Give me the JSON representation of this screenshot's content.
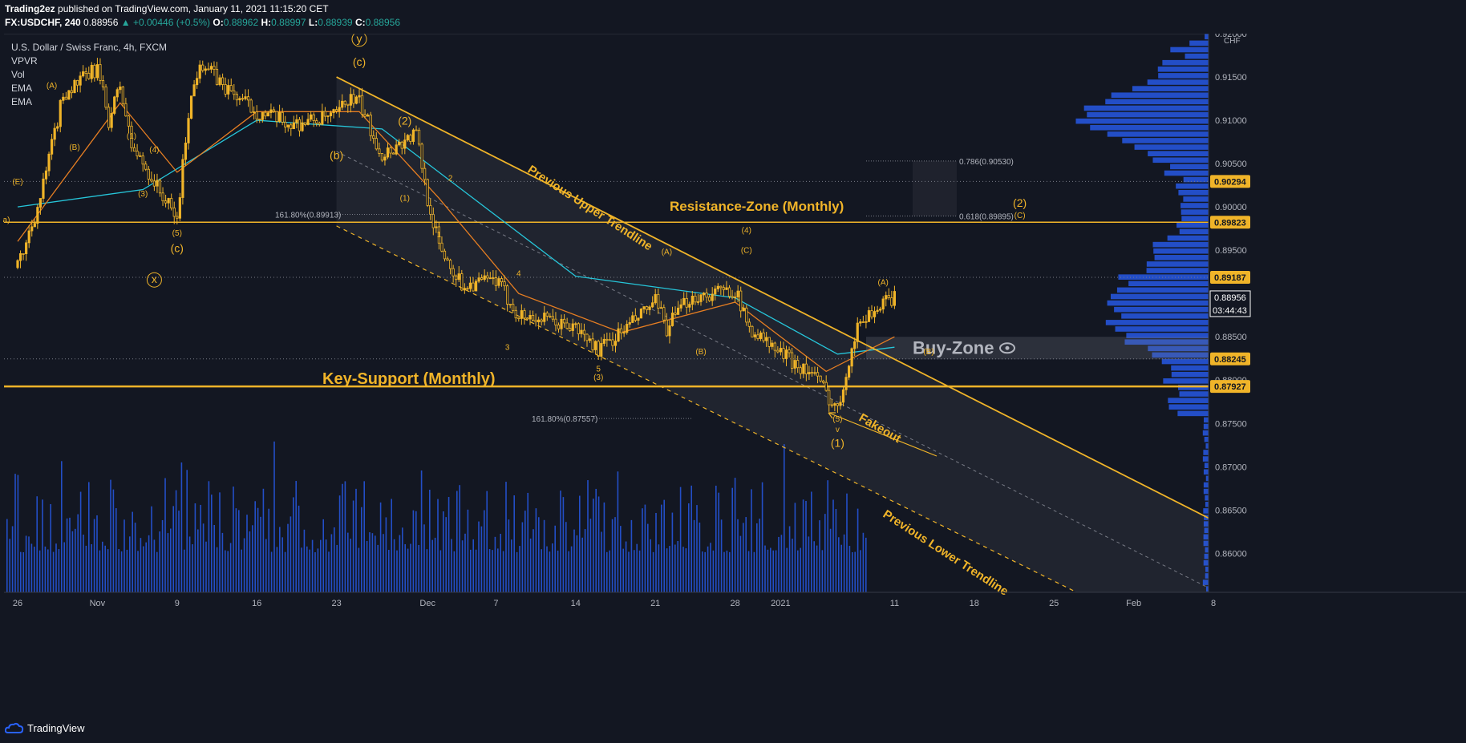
{
  "header": {
    "publisher": "Trading2ez",
    "published_text": "published on TradingView.com, January 11, 2021 11:15:20 CET",
    "symbol": "FX:USDCHF, 240",
    "last": "0.88956",
    "change": "▲ +0.00446 (+0.5%)",
    "o_label": "O:",
    "o": "0.88962",
    "h_label": "H:",
    "h": "0.88997",
    "l_label": "L:",
    "l": "0.88939",
    "c_label": "C:",
    "c": "0.88956"
  },
  "legend": {
    "title": "U.S. Dollar / Swiss Franc, 4h, FXCM",
    "indicators": [
      "VPVR",
      "Vol",
      "EMA",
      "EMA"
    ]
  },
  "footer": {
    "brand": "TradingView"
  },
  "colors": {
    "background": "#131722",
    "annotation": "#f0b429",
    "candle": "#f0b429",
    "ema_fast": "#e67e22",
    "ema_slow": "#26c6da",
    "volume": "#2962ff",
    "profile": "#2962ff"
  },
  "chart_data": {
    "type": "line",
    "title": "U.S. Dollar / Swiss Franc, 4h, FXCM",
    "currency": "CHF",
    "ylim": [
      0.8555,
      0.92
    ],
    "y_ticks": [
      "0.92000",
      "0.91500",
      "0.91000",
      "0.90500",
      "0.90000",
      "0.89500",
      "0.89000",
      "0.88500",
      "0.88000",
      "0.87500",
      "0.87000",
      "0.86500",
      "0.86000"
    ],
    "x_ticks": [
      "26",
      "Nov",
      "9",
      "16",
      "23",
      "Dec",
      "7",
      "14",
      "21",
      "28",
      "2021",
      "11",
      "18",
      "25",
      "Feb",
      "8"
    ],
    "price_path": [
      {
        "x": "Oct 26",
        "y": 0.893
      },
      {
        "x": "Oct 28",
        "y": 0.901
      },
      {
        "x": "Oct 30",
        "y": 0.913
      },
      {
        "x": "Nov 2",
        "y": 0.916
      },
      {
        "x": "Nov 3",
        "y": 0.91
      },
      {
        "x": "Nov 4",
        "y": 0.914
      },
      {
        "x": "Nov 5",
        "y": 0.907
      },
      {
        "x": "Nov 6",
        "y": 0.905
      },
      {
        "x": "Nov 9",
        "y": 0.8985
      },
      {
        "x": "Nov 10",
        "y": 0.911
      },
      {
        "x": "Nov 11",
        "y": 0.917
      },
      {
        "x": "Nov 13",
        "y": 0.914
      },
      {
        "x": "Nov 16",
        "y": 0.911
      },
      {
        "x": "Nov 19",
        "y": 0.9095
      },
      {
        "x": "Nov 23",
        "y": 0.9105
      },
      {
        "x": "Nov 24",
        "y": 0.9125
      },
      {
        "x": "Nov 25",
        "y": 0.912
      },
      {
        "x": "Nov 27",
        "y": 0.906
      },
      {
        "x": "Nov 30",
        "y": 0.9085
      },
      {
        "x": "Dec 1",
        "y": 0.901
      },
      {
        "x": "Dec 2",
        "y": 0.8955
      },
      {
        "x": "Dec 4",
        "y": 0.891
      },
      {
        "x": "Dec 7",
        "y": 0.8915
      },
      {
        "x": "Dec 9",
        "y": 0.8875
      },
      {
        "x": "Dec 11",
        "y": 0.887
      },
      {
        "x": "Dec 14",
        "y": 0.886
      },
      {
        "x": "Dec 16",
        "y": 0.8835
      },
      {
        "x": "Dec 18",
        "y": 0.8855
      },
      {
        "x": "Dec 21",
        "y": 0.889
      },
      {
        "x": "Dec 22",
        "y": 0.886
      },
      {
        "x": "Dec 24",
        "y": 0.8895
      },
      {
        "x": "Dec 28",
        "y": 0.8905
      },
      {
        "x": "Dec 29",
        "y": 0.8865
      },
      {
        "x": "Dec 31",
        "y": 0.884
      },
      {
        "x": "Jan 4",
        "y": 0.8805
      },
      {
        "x": "Jan 6",
        "y": 0.8765
      },
      {
        "x": "Jan 7",
        "y": 0.8825
      },
      {
        "x": "Jan 8",
        "y": 0.887
      },
      {
        "x": "Jan 11",
        "y": 0.88956
      }
    ],
    "ema_fast": [
      {
        "x": "Oct 26",
        "y": 0.896
      },
      {
        "x": "Nov 4",
        "y": 0.912
      },
      {
        "x": "Nov 9",
        "y": 0.904
      },
      {
        "x": "Nov 16",
        "y": 0.911
      },
      {
        "x": "Nov 25",
        "y": 0.911
      },
      {
        "x": "Dec 2",
        "y": 0.901
      },
      {
        "x": "Dec 9",
        "y": 0.89
      },
      {
        "x": "Dec 18",
        "y": 0.8855
      },
      {
        "x": "Dec 28",
        "y": 0.889
      },
      {
        "x": "Jan 5",
        "y": 0.881
      },
      {
        "x": "Jan 11",
        "y": 0.885
      }
    ],
    "ema_slow": [
      {
        "x": "Oct 26",
        "y": 0.9
      },
      {
        "x": "Nov 6",
        "y": 0.902
      },
      {
        "x": "Nov 16",
        "y": 0.91
      },
      {
        "x": "Nov 27",
        "y": 0.909
      },
      {
        "x": "Dec 4",
        "y": 0.902
      },
      {
        "x": "Dec 14",
        "y": 0.892
      },
      {
        "x": "Dec 28",
        "y": 0.8895
      },
      {
        "x": "Jan 6",
        "y": 0.883
      },
      {
        "x": "Jan 11",
        "y": 0.8838
      }
    ],
    "horizontal_levels": [
      {
        "value": 0.89823,
        "label": "0.89823"
      },
      {
        "value": 0.87927,
        "label": "0.87927"
      },
      {
        "value": 0.90294,
        "label": "0.90294"
      },
      {
        "value": 0.89187,
        "label": "0.89187"
      },
      {
        "value": 0.88245,
        "label": "0.88245"
      }
    ],
    "current_price": {
      "value": 0.88956,
      "label": "0.88956",
      "countdown": "03:44:43"
    },
    "fib_labels": [
      {
        "label": "161.80%(0.89913)",
        "x": "Nov 22",
        "y": 0.89913
      },
      {
        "label": "161.80%(0.87557)",
        "x": "Dec 3",
        "y": 0.87557
      },
      {
        "label": "0.786(0.90530)",
        "x": "Jan 13",
        "y": 0.9053
      },
      {
        "label": "0.618(0.89895)",
        "x": "Jan 13",
        "y": 0.89895
      }
    ],
    "trendlines": [
      {
        "name": "Previous Upper Trendline",
        "from": {
          "x": "Nov 23",
          "y": 0.915
        },
        "to": {
          "x": "Feb 11",
          "y": 0.8618
        }
      },
      {
        "name": "Previous Lower Trendline",
        "from": {
          "x": "Nov 23",
          "y": 0.8978
        },
        "to": {
          "x": "Jan 27",
          "y": 0.8555
        }
      }
    ],
    "annotations": {
      "key_support": "Key-Support (Monthly)",
      "resistance": "Resistance-Zone (Monthly)",
      "upper_trend": "Previous Upper Trendline",
      "lower_trend": "Previous Lower Trendline",
      "fakeout": "Fakeout",
      "buy_zone": "Buy-Zone"
    },
    "wave_labels": [
      {
        "t": "(E)",
        "x": "Oct 26",
        "y": 0.9026
      },
      {
        "t": "(A)",
        "x": "Oct 29",
        "y": 0.9137
      },
      {
        "t": "(B)",
        "x": "Oct 31",
        "y": 0.9066
      },
      {
        "t": "(1)",
        "x": "Nov 5",
        "y": 0.9079
      },
      {
        "t": "(4)",
        "x": "Nov 7",
        "y": 0.9063
      },
      {
        "t": "(3)",
        "x": "Nov 6",
        "y": 0.9012
      },
      {
        "t": "(5)",
        "x": "Nov 9",
        "y": 0.8967
      },
      {
        "t": "(c)",
        "x": "Nov 9",
        "y": 0.8948
      },
      {
        "t": "x",
        "x": "Nov 7",
        "y": 0.8912
      },
      {
        "t": "y",
        "x": "Nov 25",
        "y": 0.919
      },
      {
        "t": "(c)",
        "x": "Nov 25",
        "y": 0.9163
      },
      {
        "t": "(b)",
        "x": "Nov 23",
        "y": 0.9055
      },
      {
        "t": "(2)",
        "x": "Nov 29",
        "y": 0.9095
      },
      {
        "t": "(1)",
        "x": "Nov 29",
        "y": 0.9007
      },
      {
        "t": "2",
        "x": "Dec 3",
        "y": 0.903
      },
      {
        "t": "1",
        "x": "Dec 2",
        "y": 0.8965
      },
      {
        "t": "4",
        "x": "Dec 9",
        "y": 0.892
      },
      {
        "t": "3",
        "x": "Dec 8",
        "y": 0.8835
      },
      {
        "t": "5",
        "x": "Dec 16",
        "y": 0.881
      },
      {
        "t": "(3)",
        "x": "Dec 16",
        "y": 0.88
      },
      {
        "t": "(A)",
        "x": "Dec 22",
        "y": 0.8945
      },
      {
        "t": "(B)",
        "x": "Dec 25",
        "y": 0.883
      },
      {
        "t": "(4)",
        "x": "Dec 29",
        "y": 0.897
      },
      {
        "t": "(C)",
        "x": "Dec 29",
        "y": 0.8947
      },
      {
        "t": "(5)",
        "x": "Jan 6",
        "y": 0.8752
      },
      {
        "t": "v",
        "x": "Jan 6",
        "y": 0.874
      },
      {
        "t": "(1)",
        "x": "Jan 6",
        "y": 0.8723
      },
      {
        "t": "(A)",
        "x": "Jan 10",
        "y": 0.891
      },
      {
        "t": "(B)",
        "x": "Jan 14",
        "y": 0.883
      },
      {
        "t": "(2)",
        "x": "Jan 22",
        "y": 0.9
      },
      {
        "t": "(C)",
        "x": "Jan 22",
        "y": 0.8987
      },
      {
        "t": "a)",
        "x": "Oct 25",
        "y": 0.8982
      }
    ],
    "volume": {
      "name": "Vol"
    },
    "volume_profile": {
      "name": "VPVR"
    },
    "legend_placement": "top-left",
    "grid": false
  }
}
